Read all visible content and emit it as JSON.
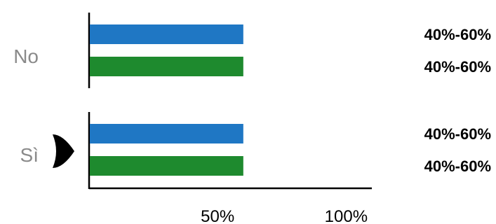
{
  "chart_data": {
    "type": "bar",
    "orientation": "horizontal",
    "categories": [
      "No",
      "Sì"
    ],
    "series": [
      {
        "color": "#1f77c4",
        "values": [
          60,
          60
        ],
        "labels": [
          "40%-60%",
          "40%-60%"
        ]
      },
      {
        "color": "#1e8a2e",
        "values": [
          60,
          60
        ],
        "labels": [
          "40%-60%",
          "40%-60%"
        ]
      }
    ],
    "x_ticks": [
      {
        "value": 50,
        "label": "50%"
      },
      {
        "value": 100,
        "label": "100%"
      }
    ],
    "xlim": [
      0,
      110
    ],
    "selected_category": "Sì",
    "marker_icon": "pointer-triangle-icon",
    "axis_color": "#000000",
    "grid": false,
    "legend": "none"
  }
}
